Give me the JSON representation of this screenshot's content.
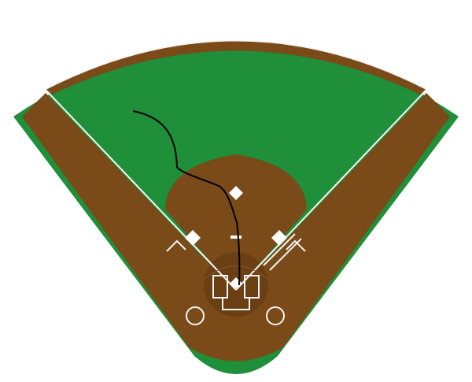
{
  "scene": {
    "subject": "baseball-field-diagram"
  },
  "colors": {
    "background": "#ffffff",
    "outer_grass": "#1f8f3a",
    "infield_dirt": "#7a4a18",
    "warning_track": "#7a4a18",
    "outfield_grass": "#1f8f3a",
    "chalk": "#f5f5f5",
    "trace": "#000000",
    "mound_shadow": "#6b3f14",
    "base_fill": "#ffffff"
  },
  "objects": {
    "bases": [
      "home-plate",
      "first-base",
      "second-base",
      "third-base"
    ],
    "batter_boxes": [
      "left-batter-box",
      "right-batter-box"
    ],
    "on_deck_circles": [
      "on-deck-circle-left",
      "on-deck-circle-right"
    ],
    "coach_boxes": [
      "coach-box-first",
      "coach-box-third"
    ],
    "trace": "ball-trace"
  }
}
